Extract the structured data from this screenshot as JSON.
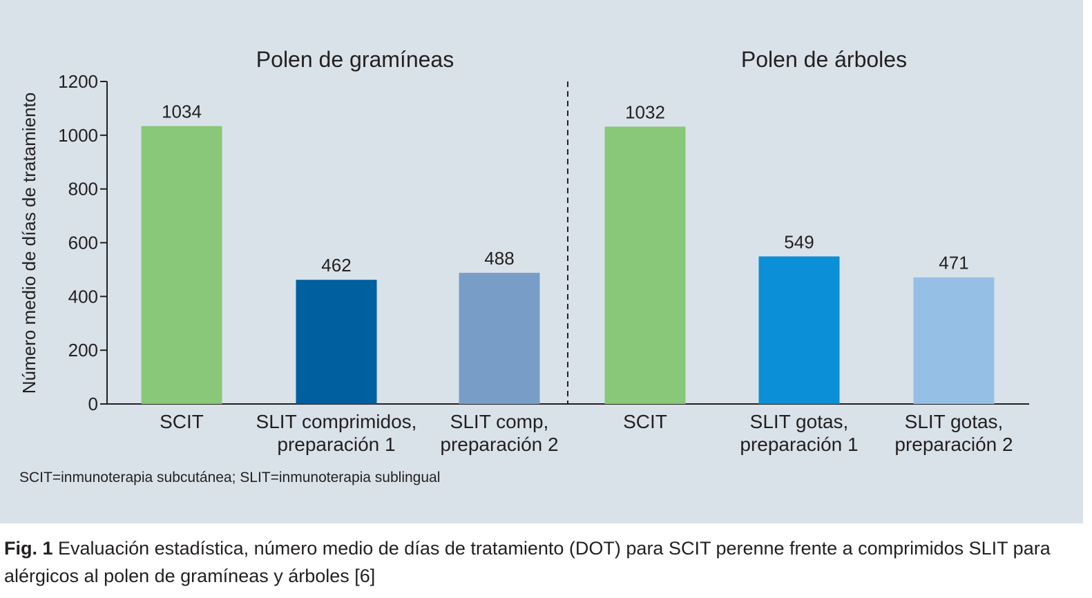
{
  "chart_data": {
    "type": "bar",
    "groups": [
      {
        "title": "Polen de gramíneas",
        "categories": [
          "SCIT",
          "SLIT comprimidos,\npreparación 1",
          "SLIT comp,\npreparación 2"
        ],
        "values": [
          1034,
          462,
          488
        ],
        "colors": [
          "#88c878",
          "#005f9e",
          "#789ec8"
        ]
      },
      {
        "title": "Polen de árboles",
        "categories": [
          "SCIT",
          "SLIT gotas,\npreparación 1",
          "SLIT gotas,\npreparación 2"
        ],
        "values": [
          1032,
          549,
          471
        ],
        "colors": [
          "#88c878",
          "#0b8fd6",
          "#96bfe6"
        ]
      }
    ],
    "ylabel": "Número medio de días de tratamiento",
    "ylim": [
      0,
      1200
    ],
    "yticks": [
      0,
      200,
      400,
      600,
      800,
      1000,
      1200
    ],
    "grid": false,
    "group_separator": "dashed"
  },
  "footnote": "SCIT=inmunoterapia subcutánea; SLIT=inmunoterapia sublingual",
  "caption": {
    "lead": "Fig. 1",
    "text": " Evaluación estadística, número medio de días de tratamiento (DOT) para SCIT perenne frente a comprimidos SLIT para alérgicos al polen de gramíneas y árboles [6]"
  }
}
